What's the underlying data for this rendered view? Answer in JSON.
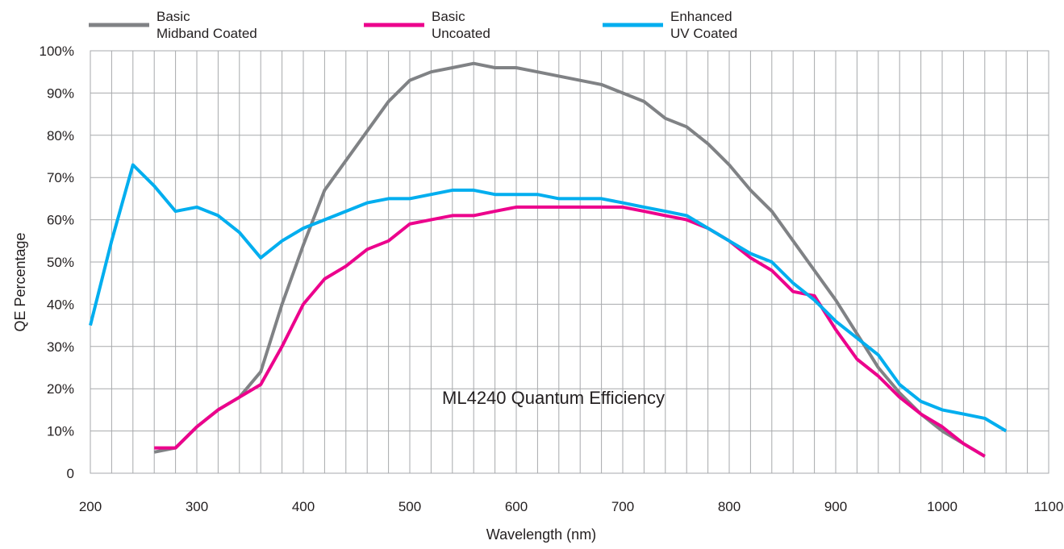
{
  "chart_data": {
    "type": "line",
    "title": "",
    "annotation": "ML4240 Quantum Efficiency",
    "xlabel": "Wavelength (nm)",
    "ylabel": "QE Percentage",
    "xlim": [
      200,
      1100
    ],
    "ylim": [
      0,
      100
    ],
    "x_major_ticks": [
      200,
      300,
      400,
      500,
      600,
      700,
      800,
      900,
      1000,
      1100
    ],
    "x_tick_labels": [
      "200",
      "300",
      "400",
      "500",
      "600",
      "700",
      "800",
      "900",
      "1000",
      "1100"
    ],
    "y_major_ticks": [
      0,
      10,
      20,
      30,
      40,
      50,
      60,
      70,
      80,
      90,
      100
    ],
    "y_tick_labels": [
      "0",
      "10%",
      "20%",
      "30%",
      "40%",
      "50%",
      "60%",
      "70%",
      "80%",
      "90%",
      "100%"
    ],
    "x_minor_step": 20,
    "grid": true,
    "legend_position": "top",
    "series": [
      {
        "name_lines": [
          "Basic",
          "Midband Coated"
        ],
        "color": "#808285",
        "points": [
          [
            260,
            5
          ],
          [
            280,
            6
          ],
          [
            300,
            11
          ],
          [
            320,
            15
          ],
          [
            340,
            18
          ],
          [
            360,
            24
          ],
          [
            380,
            40
          ],
          [
            400,
            54
          ],
          [
            420,
            67
          ],
          [
            440,
            74
          ],
          [
            460,
            81
          ],
          [
            480,
            88
          ],
          [
            500,
            93
          ],
          [
            520,
            95
          ],
          [
            540,
            96
          ],
          [
            560,
            97
          ],
          [
            580,
            96
          ],
          [
            600,
            96
          ],
          [
            620,
            95
          ],
          [
            640,
            94
          ],
          [
            660,
            93
          ],
          [
            680,
            92
          ],
          [
            700,
            90
          ],
          [
            720,
            88
          ],
          [
            740,
            84
          ],
          [
            760,
            82
          ],
          [
            780,
            78
          ],
          [
            800,
            73
          ],
          [
            820,
            67
          ],
          [
            840,
            62
          ],
          [
            860,
            55
          ],
          [
            880,
            48
          ],
          [
            900,
            41
          ],
          [
            920,
            33
          ],
          [
            940,
            25
          ],
          [
            960,
            19
          ],
          [
            980,
            14
          ],
          [
            1000,
            10
          ],
          [
            1020,
            7
          ],
          [
            1040,
            4
          ]
        ]
      },
      {
        "name_lines": [
          "Basic",
          "Uncoated"
        ],
        "color": "#ec008c",
        "points": [
          [
            260,
            6
          ],
          [
            280,
            6
          ],
          [
            300,
            11
          ],
          [
            320,
            15
          ],
          [
            340,
            18
          ],
          [
            360,
            21
          ],
          [
            380,
            30
          ],
          [
            400,
            40
          ],
          [
            420,
            46
          ],
          [
            440,
            49
          ],
          [
            460,
            53
          ],
          [
            480,
            55
          ],
          [
            500,
            59
          ],
          [
            520,
            60
          ],
          [
            540,
            61
          ],
          [
            560,
            61
          ],
          [
            580,
            62
          ],
          [
            600,
            63
          ],
          [
            620,
            63
          ],
          [
            640,
            63
          ],
          [
            660,
            63
          ],
          [
            680,
            63
          ],
          [
            700,
            63
          ],
          [
            720,
            62
          ],
          [
            740,
            61
          ],
          [
            760,
            60
          ],
          [
            780,
            58
          ],
          [
            800,
            55
          ],
          [
            820,
            51
          ],
          [
            840,
            48
          ],
          [
            860,
            43
          ],
          [
            880,
            42
          ],
          [
            900,
            34
          ],
          [
            920,
            27
          ],
          [
            940,
            23
          ],
          [
            960,
            18
          ],
          [
            980,
            14
          ],
          [
            1000,
            11
          ],
          [
            1020,
            7
          ],
          [
            1040,
            4
          ]
        ]
      },
      {
        "name_lines": [
          "Enhanced",
          "UV Coated"
        ],
        "color": "#00aeef",
        "points": [
          [
            200,
            35
          ],
          [
            220,
            55
          ],
          [
            240,
            73
          ],
          [
            260,
            68
          ],
          [
            280,
            62
          ],
          [
            300,
            63
          ],
          [
            320,
            61
          ],
          [
            340,
            57
          ],
          [
            360,
            51
          ],
          [
            380,
            55
          ],
          [
            400,
            58
          ],
          [
            420,
            60
          ],
          [
            440,
            62
          ],
          [
            460,
            64
          ],
          [
            480,
            65
          ],
          [
            500,
            65
          ],
          [
            520,
            66
          ],
          [
            540,
            67
          ],
          [
            560,
            67
          ],
          [
            580,
            66
          ],
          [
            600,
            66
          ],
          [
            620,
            66
          ],
          [
            640,
            65
          ],
          [
            660,
            65
          ],
          [
            680,
            65
          ],
          [
            700,
            64
          ],
          [
            720,
            63
          ],
          [
            740,
            62
          ],
          [
            760,
            61
          ],
          [
            780,
            58
          ],
          [
            800,
            55
          ],
          [
            820,
            52
          ],
          [
            840,
            50
          ],
          [
            860,
            45
          ],
          [
            880,
            41
          ],
          [
            900,
            36
          ],
          [
            920,
            32
          ],
          [
            940,
            28
          ],
          [
            960,
            21
          ],
          [
            980,
            17
          ],
          [
            1000,
            15
          ],
          [
            1020,
            14
          ],
          [
            1040,
            13
          ],
          [
            1060,
            10
          ]
        ]
      }
    ]
  }
}
